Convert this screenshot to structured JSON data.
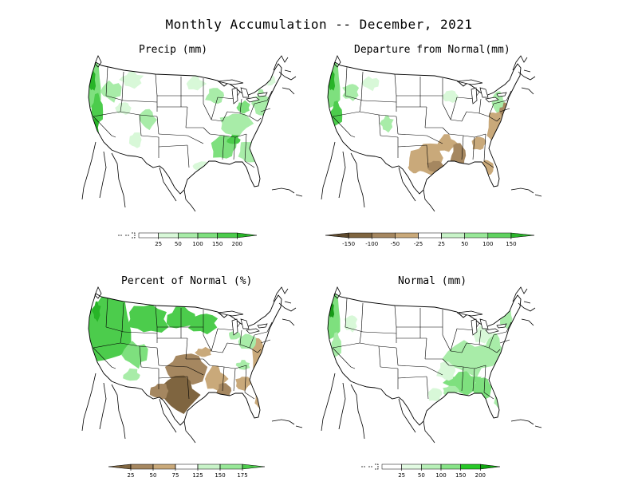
{
  "title": "Monthly Accumulation -- December, 2021",
  "panels": [
    {
      "id": "precip",
      "title": "Precip (mm)",
      "legend": {
        "ticks": [
          "25",
          "50",
          "100",
          "150",
          "200"
        ],
        "colors": [
          "#ffffff",
          "#d8f8d8",
          "#a8eca8",
          "#7ee07e",
          "#4ccc4c",
          "#28b428"
        ],
        "has_below_marker": true
      }
    },
    {
      "id": "departure",
      "title": "Departure from Normal(mm)",
      "legend": {
        "ticks": [
          "-150",
          "-100",
          "-50",
          "-25",
          "25",
          "50",
          "100",
          "150"
        ],
        "colors": [
          "#5e4a2e",
          "#7f6540",
          "#a58760",
          "#c9a97a",
          "#ffffff",
          "#c8f3c8",
          "#98e898",
          "#60d260",
          "#2cb42c"
        ]
      }
    },
    {
      "id": "percent",
      "title": "Percent of Normal (%)",
      "legend": {
        "ticks": [
          "25",
          "50",
          "75",
          "125",
          "150",
          "175"
        ],
        "colors": [
          "#7f6540",
          "#a58760",
          "#c9a97a",
          "#ffffff",
          "#c8f3c8",
          "#98e898",
          "#4ccc4c"
        ]
      }
    },
    {
      "id": "normal",
      "title": "Normal (mm)",
      "legend": {
        "ticks": [
          "25",
          "50",
          "100",
          "150",
          "200"
        ],
        "colors": [
          "#ffffff",
          "#e2fae2",
          "#b8f0b8",
          "#88e488",
          "#28c828",
          "#10a410"
        ],
        "has_below_marker": true
      }
    }
  ]
}
